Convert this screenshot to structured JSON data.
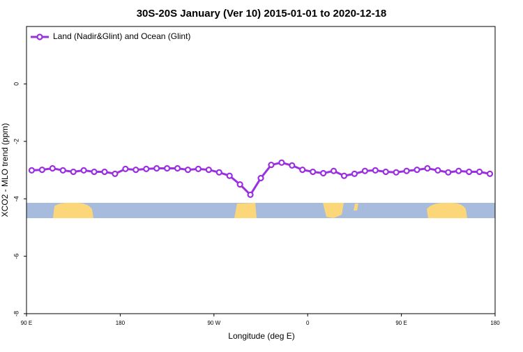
{
  "chart_data": {
    "type": "line",
    "title": "30S-20S January (Ver 10)   2015-01-01 to 2020-12-18",
    "x_label": "Longitude (deg E)",
    "y_label": "XCO2 - MLO trend (ppm)",
    "x": [
      95,
      105,
      115,
      125,
      135,
      145,
      155,
      165,
      175,
      185,
      195,
      205,
      215,
      225,
      235,
      245,
      255,
      265,
      275,
      285,
      295,
      305,
      315,
      325,
      335,
      345,
      355,
      365,
      375,
      385,
      395,
      405,
      415,
      425,
      435,
      445,
      455,
      465,
      475,
      485,
      495,
      505,
      515,
      525,
      535
    ],
    "series": [
      {
        "name": "Land (Nadir&Glint) and Ocean (Glint)",
        "color": "#9b30e0",
        "values": [
          -3.01,
          -2.99,
          -2.94,
          -3.01,
          -3.06,
          -3.01,
          -3.06,
          -3.06,
          -3.13,
          -2.96,
          -2.99,
          -2.96,
          -2.94,
          -2.94,
          -2.94,
          -2.99,
          -2.96,
          -2.99,
          -3.08,
          -3.2,
          -3.5,
          -3.86,
          -3.28,
          -2.82,
          -2.74,
          -2.84,
          -2.99,
          -3.06,
          -3.11,
          -3.03,
          -3.2,
          -3.13,
          -3.03,
          -3.01,
          -3.06,
          -3.08,
          -3.03,
          -2.99,
          -2.94,
          -3.01,
          -3.08,
          -3.03,
          -3.06,
          -3.06,
          -3.13
        ]
      }
    ],
    "xlim": [
      90,
      540
    ],
    "xticks": [
      {
        "value": 90,
        "label": "90 E"
      },
      {
        "value": 180,
        "label": "180"
      },
      {
        "value": 270,
        "label": "90 W"
      },
      {
        "value": 360,
        "label": "0"
      },
      {
        "value": 450,
        "label": "90 E"
      },
      {
        "value": 540,
        "label": "180"
      }
    ],
    "ylim": [
      -8,
      2
    ],
    "yticks": [
      0,
      -2,
      -4,
      -6,
      -8
    ],
    "legend": "top-left"
  }
}
